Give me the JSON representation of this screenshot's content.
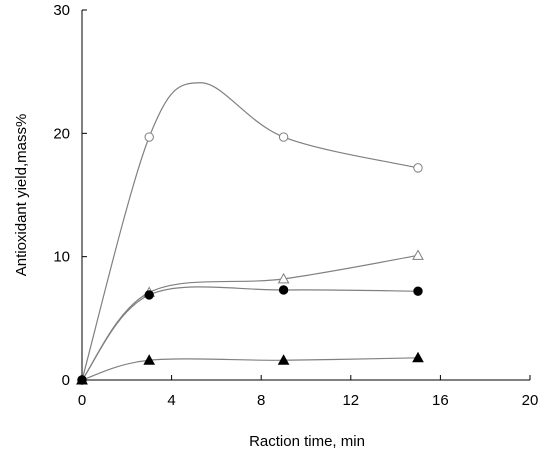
{
  "chart_data": {
    "type": "scatter",
    "title": "",
    "xlabel": "Raction time, min",
    "ylabel": "Antioxidant yield,mass%",
    "xlim": [
      0,
      20
    ],
    "ylim": [
      0,
      30
    ],
    "xticks": [
      0,
      4,
      8,
      12,
      16,
      20
    ],
    "yticks": [
      0,
      10,
      20,
      30
    ],
    "xtick_labels": [
      "0",
      "4",
      "8",
      "12",
      "16",
      "20"
    ],
    "ytick_labels": [
      "0",
      "10",
      "20",
      "30"
    ],
    "grid": false,
    "legend": "none",
    "curve_style": "smooth line through points",
    "series": [
      {
        "marker": "open-circle",
        "color": "#7f7f7f",
        "x": [
          0,
          3,
          9,
          15
        ],
        "y": [
          0,
          19.7,
          19.7,
          17.2
        ],
        "peak": [
          5.3,
          24.1
        ]
      },
      {
        "marker": "open-triangle",
        "color": "#7f7f7f",
        "x": [
          0,
          3,
          9,
          15
        ],
        "y": [
          0,
          7.1,
          8.2,
          10.1
        ]
      },
      {
        "marker": "filled-circle",
        "color": "#000000",
        "x": [
          0,
          3,
          9,
          15
        ],
        "y": [
          0,
          6.9,
          7.3,
          7.2
        ]
      },
      {
        "marker": "filled-triangle",
        "color": "#000000",
        "x": [
          0,
          3,
          9,
          15
        ],
        "y": [
          0,
          1.6,
          1.6,
          1.8
        ]
      }
    ]
  }
}
